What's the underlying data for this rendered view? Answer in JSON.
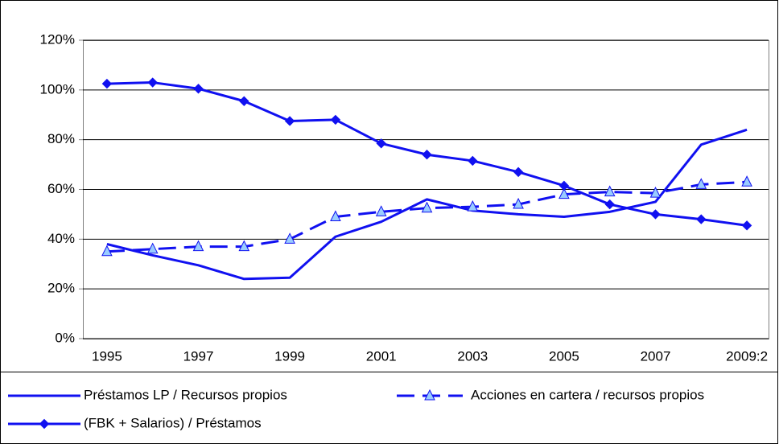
{
  "chart_data": {
    "type": "line",
    "categories": [
      "1995",
      null,
      "1997",
      null,
      "1999",
      null,
      "2001",
      null,
      "2003",
      null,
      "2005",
      null,
      "2007",
      null,
      "2009:2"
    ],
    "series": [
      {
        "name": "Préstamos LP / Recursos propios",
        "color": "#1010f0",
        "values": [
          38,
          33.5,
          29.5,
          24,
          24.5,
          41,
          47,
          56,
          51.5,
          50,
          49,
          51,
          55,
          78,
          84
        ]
      },
      {
        "name": "Acciones en cartera / recursos propios",
        "color": "#1010f0",
        "dash": true,
        "marker": "triangle",
        "marker_fill": "#99ccff",
        "values": [
          35,
          36,
          37,
          37,
          40,
          49,
          51,
          52.5,
          53,
          54,
          58,
          59,
          58.5,
          62,
          63
        ]
      },
      {
        "name": "(FBK + Salarios) / Préstamos",
        "color": "#1010f0",
        "marker": "diamond",
        "marker_fill": "#1010f0",
        "values": [
          102.5,
          103,
          100.5,
          95.5,
          87.5,
          88,
          78.5,
          74,
          71.5,
          67,
          61.5,
          54,
          50,
          48,
          45.5
        ]
      }
    ],
    "ylim": [
      0,
      120
    ],
    "yticks": [
      {
        "value": 0,
        "label": "0%"
      },
      {
        "value": 20,
        "label": "20%"
      },
      {
        "value": 40,
        "label": "40%"
      },
      {
        "value": 60,
        "label": "60%"
      },
      {
        "value": 80,
        "label": "80%"
      },
      {
        "value": 100,
        "label": "100%"
      },
      {
        "value": 120,
        "label": "120%"
      }
    ],
    "grid": true,
    "legend": "bottom"
  }
}
